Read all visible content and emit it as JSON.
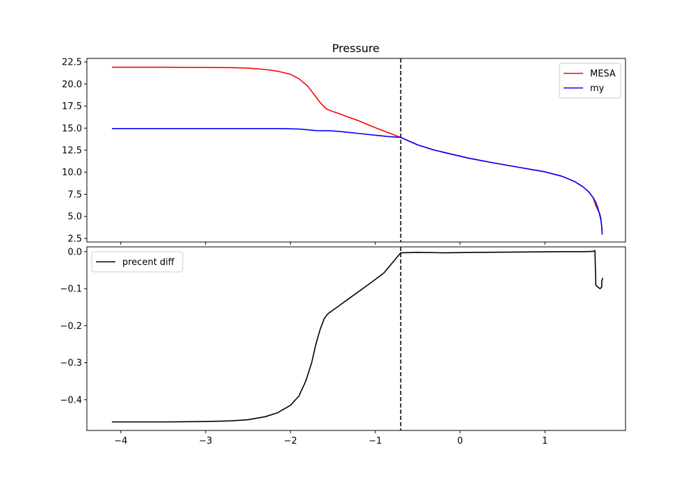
{
  "chart_data": [
    {
      "type": "line",
      "title": "Pressure",
      "xlabel": "",
      "ylabel": "",
      "xlim": [
        -4.4,
        1.95
      ],
      "ylim": [
        2.1,
        22.9
      ],
      "yticks": [
        2.5,
        5.0,
        7.5,
        10.0,
        12.5,
        15.0,
        17.5,
        20.0,
        22.5
      ],
      "ytick_labels": [
        "2.5",
        "5.0",
        "7.5",
        "10.0",
        "12.5",
        "15.0",
        "17.5",
        "20.0",
        "22.5"
      ],
      "xticks": [
        -4,
        -3,
        -2,
        -1,
        0,
        1
      ],
      "show_xtick_labels": false,
      "grid": false,
      "legend_placement": "top-right",
      "vline": {
        "x": -0.7,
        "style": "dashed",
        "color": "#000000"
      },
      "series": [
        {
          "name": "MESA",
          "color": "#ff0000",
          "x": [
            -4.1,
            -3.5,
            -3.0,
            -2.7,
            -2.5,
            -2.3,
            -2.15,
            -2.0,
            -1.9,
            -1.8,
            -1.72,
            -1.65,
            -1.58,
            -1.52,
            -1.4,
            -1.2,
            -1.0,
            -0.85,
            -0.7,
            -0.5,
            -0.3,
            -0.1,
            0.1,
            0.4,
            0.7,
            1.0,
            1.2,
            1.35,
            1.45,
            1.52,
            1.57,
            1.6,
            1.62,
            1.64,
            1.66,
            1.67,
            1.675
          ],
          "y": [
            21.9,
            21.9,
            21.88,
            21.85,
            21.8,
            21.65,
            21.45,
            21.1,
            20.6,
            19.8,
            18.8,
            17.9,
            17.2,
            16.95,
            16.55,
            15.85,
            15.05,
            14.5,
            13.95,
            13.1,
            12.5,
            12.05,
            11.6,
            11.05,
            10.55,
            10.05,
            9.55,
            8.95,
            8.35,
            7.75,
            7.1,
            6.2,
            5.8,
            5.5,
            4.8,
            3.9,
            3.0
          ]
        },
        {
          "name": "my",
          "color": "#0000ff",
          "x": [
            -4.1,
            -3.5,
            -3.0,
            -2.5,
            -2.1,
            -1.9,
            -1.8,
            -1.7,
            -1.52,
            -1.4,
            -1.2,
            -1.0,
            -0.85,
            -0.7,
            -0.5,
            -0.3,
            -0.1,
            0.1,
            0.4,
            0.7,
            1.0,
            1.2,
            1.35,
            1.45,
            1.52,
            1.57,
            1.6,
            1.62,
            1.64,
            1.66,
            1.67,
            1.675
          ],
          "y": [
            14.95,
            14.95,
            14.95,
            14.95,
            14.95,
            14.9,
            14.82,
            14.72,
            14.7,
            14.6,
            14.4,
            14.2,
            14.05,
            13.95,
            13.1,
            12.5,
            12.05,
            11.6,
            11.05,
            10.55,
            10.05,
            9.55,
            8.95,
            8.35,
            7.75,
            7.1,
            6.6,
            6.1,
            5.4,
            4.6,
            3.8,
            3.0
          ]
        }
      ]
    },
    {
      "type": "line",
      "title": "",
      "xlabel": "",
      "ylabel": "",
      "xlim": [
        -4.4,
        1.95
      ],
      "ylim": [
        -0.483,
        0.013
      ],
      "yticks": [
        -0.4,
        -0.3,
        -0.2,
        -0.1,
        0.0
      ],
      "ytick_labels": [
        "−0.4",
        "−0.3",
        "−0.2",
        "−0.1",
        "0.0"
      ],
      "xticks": [
        -4,
        -3,
        -2,
        -1,
        0,
        1
      ],
      "xtick_labels": [
        "−4",
        "−3",
        "−2",
        "−1",
        "0",
        "1"
      ],
      "grid": false,
      "legend_placement": "top-left",
      "vline": {
        "x": -0.7,
        "style": "dashed",
        "color": "#000000"
      },
      "series": [
        {
          "name": "precent diff",
          "color": "#000000",
          "x": [
            -4.1,
            -3.5,
            -3.0,
            -2.7,
            -2.5,
            -2.3,
            -2.15,
            -2.0,
            -1.9,
            -1.82,
            -1.75,
            -1.7,
            -1.65,
            -1.6,
            -1.56,
            -1.53,
            -1.5,
            -1.45,
            -1.3,
            -1.1,
            -0.9,
            -0.7,
            -0.5,
            -0.2,
            0.2,
            0.7,
            1.2,
            1.45,
            1.57,
            1.59,
            1.6,
            1.62,
            1.65,
            1.67,
            1.67,
            1.68
          ],
          "y": [
            -0.46,
            -0.46,
            -0.459,
            -0.457,
            -0.454,
            -0.446,
            -0.435,
            -0.415,
            -0.39,
            -0.35,
            -0.3,
            -0.25,
            -0.21,
            -0.18,
            -0.168,
            -0.163,
            -0.158,
            -0.15,
            -0.125,
            -0.092,
            -0.058,
            -0.003,
            -0.002,
            -0.003,
            -0.002,
            -0.001,
            0.0,
            0.0,
            0.001,
            0.003,
            -0.09,
            -0.095,
            -0.1,
            -0.095,
            -0.08,
            -0.072
          ]
        }
      ]
    }
  ]
}
